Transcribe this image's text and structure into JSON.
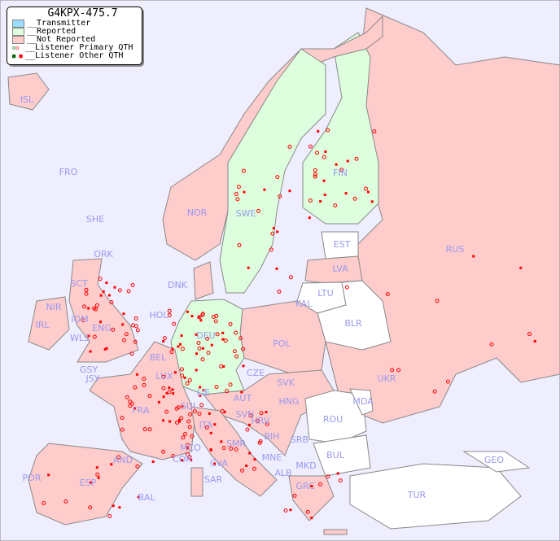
{
  "title": "G4KPX-475.7",
  "legend": {
    "transmitter": "__Transmitter",
    "reported": "__Reported",
    "not_reported": "__Not Reported",
    "primary": "__Listener Primary QTH",
    "other": "__Listener Other QTH"
  },
  "colors": {
    "sea": "#eeeeff",
    "transmitter": "#99ddff",
    "reported": "#ddffdd",
    "not_reported": "#ffcccc",
    "none": "#ffffff",
    "label": "#9999ee",
    "listener": "#ff0000",
    "listener_reported": "#006600"
  },
  "labels": [
    "ISL",
    "FRO",
    "SHE",
    "ORK",
    "NOR",
    "SWE",
    "FIN",
    "EST",
    "RUS",
    "LVA",
    "LTU",
    "DNK",
    "SCT",
    "IOM",
    "NIR",
    "IRL",
    "WLS",
    "ENG",
    "HOL",
    "KAL",
    "BLR",
    "POL",
    "DEU",
    "BEL",
    "LUX",
    "GSY",
    "JSY",
    "CZE",
    "SVK",
    "UKR",
    "FRA",
    "SUI",
    "LIE",
    "AUT",
    "HNG",
    "MDA",
    "SVN",
    "HRV",
    "ROU",
    "ITA",
    "BIH",
    "SRB",
    "MCO",
    "SMR",
    "COR",
    "CVA",
    "MNE",
    "BUL",
    "GEO",
    "AND",
    "ALB",
    "MKD",
    "POR",
    "ESP",
    "SAR",
    "GRC",
    "TUR",
    "BAL"
  ]
}
